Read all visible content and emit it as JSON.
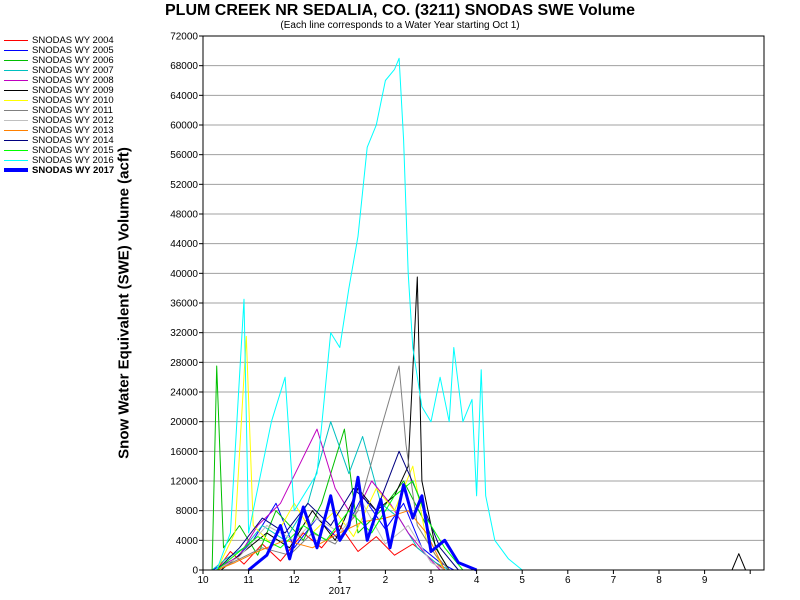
{
  "chart_data": {
    "type": "line",
    "title": "PLUM CREEK NR SEDALIA, CO. (3211) SNODAS SWE Volume",
    "subtitle": "(Each line corresponds to a Water Year starting Oct 1)",
    "ylabel": "Snow Water Equivalent (SWE) Volume (acft)",
    "xlabel": "",
    "x_axis_year_label": "2017",
    "ylim": [
      0,
      72000
    ],
    "y_ticks": [
      0,
      4000,
      8000,
      12000,
      16000,
      20000,
      24000,
      28000,
      32000,
      36000,
      40000,
      44000,
      48000,
      52000,
      56000,
      60000,
      64000,
      68000,
      72000
    ],
    "x_ticks": [
      "10",
      "11",
      "12",
      "1",
      "2",
      "3",
      "4",
      "5",
      "6",
      "7",
      "8",
      "9"
    ],
    "xlim_months": [
      0,
      12
    ],
    "grid": true,
    "legend_position": "left",
    "series": [
      {
        "name": "SNODAS WY 2004",
        "color": "#ff0000",
        "bold": false,
        "points": [
          [
            0.3,
            0
          ],
          [
            0.6,
            2500
          ],
          [
            0.9,
            800
          ],
          [
            1.3,
            3500
          ],
          [
            1.7,
            1200
          ],
          [
            2.2,
            5000
          ],
          [
            2.6,
            3000
          ],
          [
            3.0,
            6000
          ],
          [
            3.4,
            2500
          ],
          [
            3.8,
            4500
          ],
          [
            4.2,
            2000
          ],
          [
            4.6,
            3500
          ],
          [
            5.0,
            1500
          ],
          [
            5.3,
            0
          ]
        ]
      },
      {
        "name": "SNODAS WY 2005",
        "color": "#0000ff",
        "bold": false,
        "points": [
          [
            0.2,
            0
          ],
          [
            0.7,
            1500
          ],
          [
            1.1,
            4000
          ],
          [
            1.6,
            9000
          ],
          [
            2.0,
            3000
          ],
          [
            2.5,
            7000
          ],
          [
            3.0,
            4000
          ],
          [
            3.5,
            10000
          ],
          [
            4.0,
            5500
          ],
          [
            4.4,
            9000
          ],
          [
            4.8,
            3000
          ],
          [
            5.2,
            1000
          ],
          [
            5.5,
            0
          ]
        ]
      },
      {
        "name": "SNODAS WY 2006",
        "color": "#00c000",
        "bold": false,
        "points": [
          [
            0.2,
            0
          ],
          [
            0.3,
            27500
          ],
          [
            0.45,
            3000
          ],
          [
            0.8,
            6000
          ],
          [
            1.2,
            2000
          ],
          [
            1.6,
            8000
          ],
          [
            2.2,
            4000
          ],
          [
            2.6,
            9000
          ],
          [
            3.1,
            19000
          ],
          [
            3.4,
            5000
          ],
          [
            3.9,
            8000
          ],
          [
            4.4,
            12000
          ],
          [
            4.9,
            6000
          ],
          [
            5.2,
            2000
          ],
          [
            5.4,
            0
          ]
        ]
      },
      {
        "name": "SNODAS WY 2007",
        "color": "#00c0c0",
        "bold": false,
        "points": [
          [
            0.2,
            0
          ],
          [
            0.5,
            1500
          ],
          [
            0.9,
            3000
          ],
          [
            1.3,
            6000
          ],
          [
            1.8,
            4000
          ],
          [
            2.3,
            9000
          ],
          [
            2.8,
            20000
          ],
          [
            3.2,
            13000
          ],
          [
            3.5,
            18000
          ],
          [
            3.9,
            9000
          ],
          [
            4.3,
            7000
          ],
          [
            4.7,
            3000
          ],
          [
            5.1,
            1000
          ],
          [
            5.4,
            0
          ]
        ]
      },
      {
        "name": "SNODAS WY 2008",
        "color": "#c000c0",
        "bold": false,
        "points": [
          [
            0.3,
            0
          ],
          [
            0.8,
            2000
          ],
          [
            1.2,
            6000
          ],
          [
            1.7,
            9000
          ],
          [
            2.1,
            14000
          ],
          [
            2.5,
            19000
          ],
          [
            2.9,
            11000
          ],
          [
            3.3,
            7000
          ],
          [
            3.7,
            12000
          ],
          [
            4.1,
            9000
          ],
          [
            4.5,
            5000
          ],
          [
            4.9,
            2000
          ],
          [
            5.2,
            0
          ]
        ]
      },
      {
        "name": "SNODAS WY 2009",
        "color": "#000000",
        "bold": false,
        "points": [
          [
            0.4,
            0
          ],
          [
            0.9,
            2500
          ],
          [
            1.4,
            5000
          ],
          [
            1.9,
            3000
          ],
          [
            2.4,
            8000
          ],
          [
            2.9,
            4000
          ],
          [
            3.4,
            11000
          ],
          [
            3.8,
            8000
          ],
          [
            4.2,
            10000
          ],
          [
            4.5,
            14000
          ],
          [
            4.7,
            39500
          ],
          [
            4.8,
            12000
          ],
          [
            5.1,
            3000
          ],
          [
            5.4,
            0
          ],
          [
            11.6,
            0
          ],
          [
            11.75,
            2200
          ],
          [
            11.9,
            0
          ]
        ]
      },
      {
        "name": "SNODAS WY 2010",
        "color": "#ffff00",
        "bold": false,
        "points": [
          [
            0.3,
            0
          ],
          [
            0.7,
            5000
          ],
          [
            0.95,
            31500
          ],
          [
            1.1,
            6000
          ],
          [
            1.5,
            3500
          ],
          [
            2.0,
            9000
          ],
          [
            2.4,
            5000
          ],
          [
            2.9,
            8000
          ],
          [
            3.3,
            4500
          ],
          [
            3.8,
            11000
          ],
          [
            4.2,
            8000
          ],
          [
            4.6,
            14000
          ],
          [
            4.9,
            4000
          ],
          [
            5.3,
            0
          ]
        ]
      },
      {
        "name": "SNODAS WY 2011",
        "color": "#808080",
        "bold": false,
        "points": [
          [
            0.3,
            0
          ],
          [
            0.8,
            1500
          ],
          [
            1.3,
            3000
          ],
          [
            1.9,
            2000
          ],
          [
            2.4,
            5000
          ],
          [
            2.9,
            3500
          ],
          [
            3.4,
            8000
          ],
          [
            3.9,
            19000
          ],
          [
            4.3,
            27500
          ],
          [
            4.45,
            17000
          ],
          [
            4.7,
            6000
          ],
          [
            5.1,
            2000
          ],
          [
            5.4,
            0
          ]
        ]
      },
      {
        "name": "SNODAS WY 2012",
        "color": "#c0c0c0",
        "bold": false,
        "points": [
          [
            0.3,
            0
          ],
          [
            0.8,
            1800
          ],
          [
            1.4,
            6000
          ],
          [
            2.0,
            4000
          ],
          [
            2.5,
            7000
          ],
          [
            3.0,
            5000
          ],
          [
            3.5,
            9000
          ],
          [
            4.0,
            3500
          ],
          [
            4.5,
            6000
          ],
          [
            5.0,
            1000
          ],
          [
            5.3,
            0
          ]
        ]
      },
      {
        "name": "SNODAS WY 2013",
        "color": "#ff8000",
        "bold": false,
        "points": [
          [
            0.3,
            0
          ],
          [
            0.7,
            1000
          ],
          [
            1.2,
            2500
          ],
          [
            1.8,
            4000
          ],
          [
            2.4,
            3000
          ],
          [
            3.0,
            5000
          ],
          [
            3.5,
            6500
          ],
          [
            4.0,
            7000
          ],
          [
            4.5,
            8000
          ],
          [
            4.9,
            5000
          ],
          [
            5.3,
            0
          ]
        ]
      },
      {
        "name": "SNODAS WY 2014",
        "color": "#000080",
        "bold": false,
        "points": [
          [
            0.3,
            0
          ],
          [
            0.8,
            3000
          ],
          [
            1.3,
            7000
          ],
          [
            1.8,
            5000
          ],
          [
            2.3,
            9000
          ],
          [
            2.8,
            6000
          ],
          [
            3.3,
            11000
          ],
          [
            3.8,
            8000
          ],
          [
            4.3,
            16000
          ],
          [
            4.8,
            9000
          ],
          [
            5.2,
            3000
          ],
          [
            5.6,
            0
          ]
        ]
      },
      {
        "name": "SNODAS WY 2015",
        "color": "#00ff00",
        "bold": false,
        "points": [
          [
            0.3,
            0
          ],
          [
            0.7,
            2000
          ],
          [
            1.2,
            4500
          ],
          [
            1.7,
            3000
          ],
          [
            2.2,
            6000
          ],
          [
            2.7,
            4000
          ],
          [
            3.2,
            8000
          ],
          [
            3.7,
            5000
          ],
          [
            4.2,
            10000
          ],
          [
            4.6,
            12000
          ],
          [
            4.9,
            7000
          ],
          [
            5.3,
            3000
          ],
          [
            5.7,
            0
          ]
        ]
      },
      {
        "name": "SNODAS WY 2016",
        "color": "#00ffff",
        "bold": false,
        "points": [
          [
            0.3,
            0
          ],
          [
            0.6,
            5000
          ],
          [
            0.9,
            36500
          ],
          [
            1.0,
            5000
          ],
          [
            1.5,
            20000
          ],
          [
            1.8,
            26000
          ],
          [
            2.0,
            8000
          ],
          [
            2.5,
            13000
          ],
          [
            2.8,
            32000
          ],
          [
            3.0,
            30000
          ],
          [
            3.2,
            38000
          ],
          [
            3.4,
            45000
          ],
          [
            3.6,
            57000
          ],
          [
            3.8,
            60000
          ],
          [
            4.0,
            66000
          ],
          [
            4.2,
            67500
          ],
          [
            4.3,
            69000
          ],
          [
            4.4,
            58000
          ],
          [
            4.5,
            40000
          ],
          [
            4.6,
            30000
          ],
          [
            4.8,
            22000
          ],
          [
            5.0,
            20000
          ],
          [
            5.2,
            26000
          ],
          [
            5.4,
            20000
          ],
          [
            5.5,
            30000
          ],
          [
            5.7,
            20000
          ],
          [
            5.9,
            23000
          ],
          [
            6.0,
            10000
          ],
          [
            6.1,
            27000
          ],
          [
            6.2,
            10000
          ],
          [
            6.4,
            4000
          ],
          [
            6.7,
            1500
          ],
          [
            7.0,
            0
          ]
        ]
      },
      {
        "name": "SNODAS WY 2017",
        "color": "#0000ff",
        "bold": true,
        "points": [
          [
            1.0,
            0
          ],
          [
            1.4,
            2000
          ],
          [
            1.7,
            6000
          ],
          [
            1.9,
            1500
          ],
          [
            2.2,
            8500
          ],
          [
            2.5,
            3000
          ],
          [
            2.8,
            10000
          ],
          [
            3.0,
            4000
          ],
          [
            3.2,
            6000
          ],
          [
            3.4,
            12500
          ],
          [
            3.6,
            4000
          ],
          [
            3.9,
            9500
          ],
          [
            4.1,
            3000
          ],
          [
            4.4,
            11500
          ],
          [
            4.6,
            7000
          ],
          [
            4.8,
            10000
          ],
          [
            5.0,
            2500
          ],
          [
            5.3,
            4000
          ],
          [
            5.6,
            1000
          ],
          [
            6.0,
            0
          ]
        ]
      }
    ]
  }
}
